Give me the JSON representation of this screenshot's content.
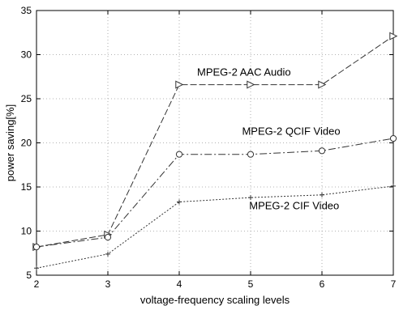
{
  "chart_data": {
    "type": "line",
    "title": "",
    "xlabel": "voltage-frequency scaling levels",
    "ylabel": "power saving[%]",
    "xlim": [
      2,
      7
    ],
    "ylim": [
      5,
      35
    ],
    "xticks": [
      "2",
      "3",
      "4",
      "5",
      "6",
      "7"
    ],
    "yticks": [
      "5",
      "10",
      "15",
      "20",
      "25",
      "30",
      "35"
    ],
    "grid": true,
    "legend": "none",
    "x": [
      2,
      3,
      4,
      5,
      6,
      7
    ],
    "series": [
      {
        "name": "MPEG-2 AAC Audio",
        "marker": "triangle-right",
        "dash": "8,3",
        "values": [
          8.2,
          9.6,
          26.6,
          26.6,
          26.6,
          32.1
        ]
      },
      {
        "name": "MPEG-2 QCIF Video",
        "marker": "circle",
        "dash": "9,3,2,3",
        "values": [
          8.2,
          9.3,
          18.7,
          18.7,
          19.1,
          20.5
        ]
      },
      {
        "name": "MPEG-2 CIF Video",
        "marker": "plus",
        "dash": "2,2",
        "values": [
          5.8,
          7.4,
          13.3,
          13.8,
          14.1,
          15.1
        ]
      }
    ],
    "annotations": [
      {
        "text": "MPEG-2 AAC Audio",
        "x": 4.25,
        "y": 27.6
      },
      {
        "text": "MPEG-2 QCIF Video",
        "x": 4.88,
        "y": 20.9
      },
      {
        "text": "MPEG-2 CIF Video",
        "x": 4.98,
        "y": 12.5
      }
    ]
  }
}
